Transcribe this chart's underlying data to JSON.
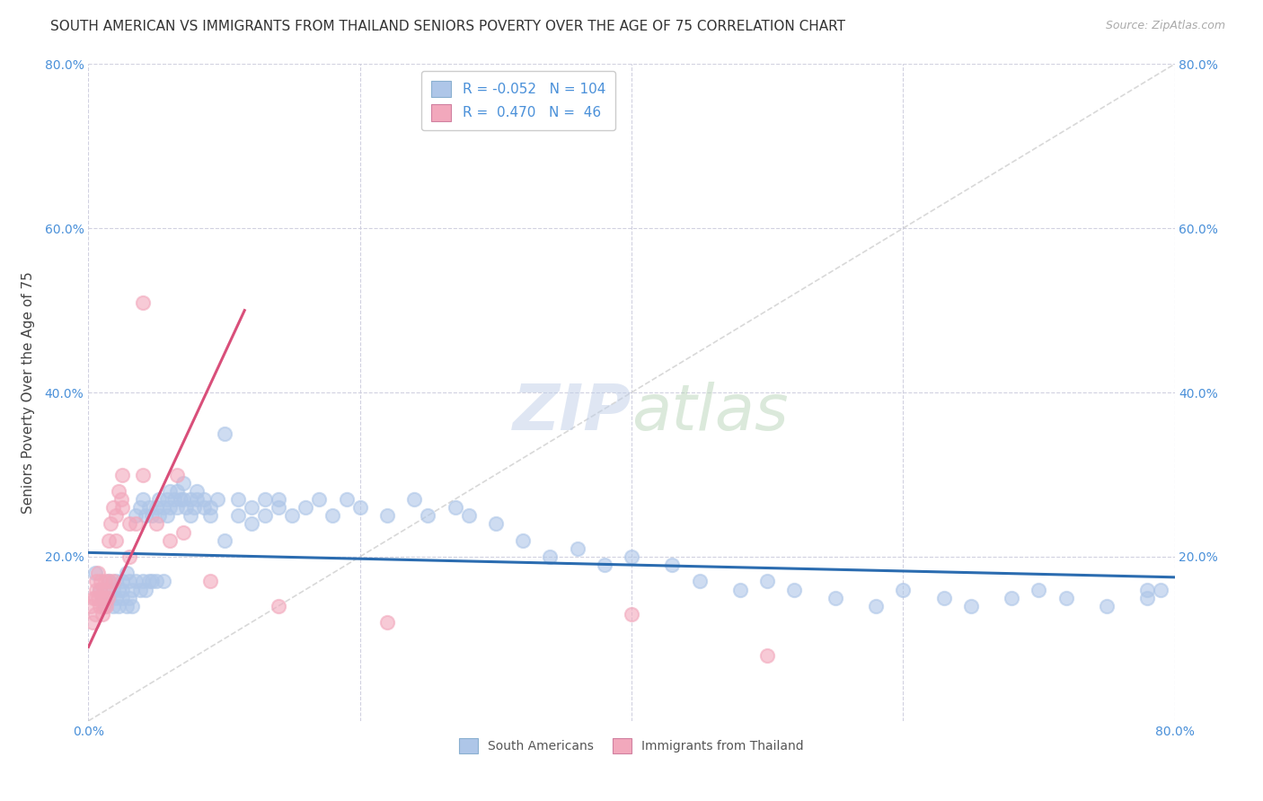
{
  "title": "SOUTH AMERICAN VS IMMIGRANTS FROM THAILAND SENIORS POVERTY OVER THE AGE OF 75 CORRELATION CHART",
  "source": "Source: ZipAtlas.com",
  "ylabel": "Seniors Poverty Over the Age of 75",
  "xlim": [
    0,
    0.8
  ],
  "ylim": [
    0,
    0.8
  ],
  "xticks": [
    0.0,
    0.2,
    0.4,
    0.6,
    0.8
  ],
  "yticks": [
    0.2,
    0.4,
    0.6,
    0.8
  ],
  "xtick_labels": [
    "0.0%",
    "",
    "",
    "",
    "80.0%"
  ],
  "ytick_labels": [
    "20.0%",
    "40.0%",
    "60.0%",
    "80.0%"
  ],
  "right_ytick_labels": [
    "20.0%",
    "40.0%",
    "60.0%",
    "80.0%"
  ],
  "right_yticks": [
    0.2,
    0.4,
    0.6,
    0.8
  ],
  "blue_color": "#aec6e8",
  "pink_color": "#f2a8bc",
  "blue_line_color": "#2b6cb0",
  "pink_line_color": "#d94f7a",
  "diagonal_color": "#c8c8c8",
  "grid_color": "#ccccdd",
  "background_color": "#ffffff",
  "legend_R1": "-0.052",
  "legend_N1": "104",
  "legend_R2": "0.470",
  "legend_N2": "46",
  "legend_label1": "South Americans",
  "legend_label2": "Immigrants from Thailand",
  "blue_scatter_x": [
    0.005,
    0.008,
    0.01,
    0.012,
    0.015,
    0.015,
    0.018,
    0.018,
    0.02,
    0.02,
    0.022,
    0.022,
    0.025,
    0.025,
    0.025,
    0.028,
    0.028,
    0.03,
    0.03,
    0.032,
    0.032,
    0.035,
    0.035,
    0.038,
    0.038,
    0.04,
    0.04,
    0.042,
    0.042,
    0.045,
    0.045,
    0.047,
    0.047,
    0.05,
    0.05,
    0.052,
    0.052,
    0.055,
    0.055,
    0.058,
    0.058,
    0.06,
    0.06,
    0.063,
    0.065,
    0.065,
    0.068,
    0.07,
    0.07,
    0.072,
    0.075,
    0.075,
    0.078,
    0.08,
    0.08,
    0.085,
    0.085,
    0.09,
    0.09,
    0.095,
    0.1,
    0.1,
    0.11,
    0.11,
    0.12,
    0.12,
    0.13,
    0.13,
    0.14,
    0.14,
    0.15,
    0.16,
    0.17,
    0.18,
    0.19,
    0.2,
    0.22,
    0.24,
    0.25,
    0.27,
    0.28,
    0.3,
    0.32,
    0.34,
    0.36,
    0.38,
    0.4,
    0.43,
    0.45,
    0.48,
    0.5,
    0.52,
    0.55,
    0.58,
    0.6,
    0.63,
    0.65,
    0.68,
    0.7,
    0.72,
    0.75,
    0.78,
    0.78,
    0.79
  ],
  "blue_scatter_y": [
    0.18,
    0.16,
    0.15,
    0.14,
    0.17,
    0.15,
    0.16,
    0.14,
    0.17,
    0.15,
    0.16,
    0.14,
    0.17,
    0.15,
    0.16,
    0.18,
    0.14,
    0.17,
    0.15,
    0.16,
    0.14,
    0.25,
    0.17,
    0.26,
    0.16,
    0.27,
    0.17,
    0.25,
    0.16,
    0.26,
    0.17,
    0.25,
    0.17,
    0.26,
    0.17,
    0.25,
    0.27,
    0.26,
    0.17,
    0.25,
    0.27,
    0.26,
    0.28,
    0.27,
    0.28,
    0.26,
    0.27,
    0.27,
    0.29,
    0.26,
    0.25,
    0.27,
    0.26,
    0.28,
    0.27,
    0.26,
    0.27,
    0.26,
    0.25,
    0.27,
    0.35,
    0.22,
    0.27,
    0.25,
    0.26,
    0.24,
    0.27,
    0.25,
    0.27,
    0.26,
    0.25,
    0.26,
    0.27,
    0.25,
    0.27,
    0.26,
    0.25,
    0.27,
    0.25,
    0.26,
    0.25,
    0.24,
    0.22,
    0.2,
    0.21,
    0.19,
    0.2,
    0.19,
    0.17,
    0.16,
    0.17,
    0.16,
    0.15,
    0.14,
    0.16,
    0.15,
    0.14,
    0.15,
    0.16,
    0.15,
    0.14,
    0.16,
    0.15,
    0.16
  ],
  "pink_scatter_x": [
    0.002,
    0.003,
    0.004,
    0.005,
    0.005,
    0.006,
    0.006,
    0.007,
    0.007,
    0.008,
    0.008,
    0.009,
    0.01,
    0.01,
    0.011,
    0.011,
    0.012,
    0.012,
    0.013,
    0.013,
    0.014,
    0.015,
    0.015,
    0.016,
    0.018,
    0.018,
    0.02,
    0.02,
    0.022,
    0.024,
    0.025,
    0.025,
    0.03,
    0.03,
    0.035,
    0.04,
    0.04,
    0.05,
    0.06,
    0.065,
    0.07,
    0.09,
    0.14,
    0.22,
    0.4,
    0.5
  ],
  "pink_scatter_y": [
    0.14,
    0.12,
    0.15,
    0.13,
    0.15,
    0.16,
    0.17,
    0.15,
    0.18,
    0.16,
    0.14,
    0.17,
    0.15,
    0.13,
    0.16,
    0.14,
    0.17,
    0.15,
    0.16,
    0.14,
    0.15,
    0.22,
    0.17,
    0.24,
    0.26,
    0.17,
    0.22,
    0.25,
    0.28,
    0.27,
    0.3,
    0.26,
    0.24,
    0.2,
    0.24,
    0.51,
    0.3,
    0.24,
    0.22,
    0.3,
    0.23,
    0.17,
    0.14,
    0.12,
    0.13,
    0.08
  ],
  "blue_trend_x0": 0.0,
  "blue_trend_x1": 0.8,
  "blue_trend_y0": 0.205,
  "blue_trend_y1": 0.175,
  "pink_trend_x0": 0.0,
  "pink_trend_x1": 0.115,
  "pink_trend_y0": 0.09,
  "pink_trend_y1": 0.5,
  "title_fontsize": 11,
  "axis_label_fontsize": 11,
  "tick_fontsize": 10,
  "source_fontsize": 9
}
